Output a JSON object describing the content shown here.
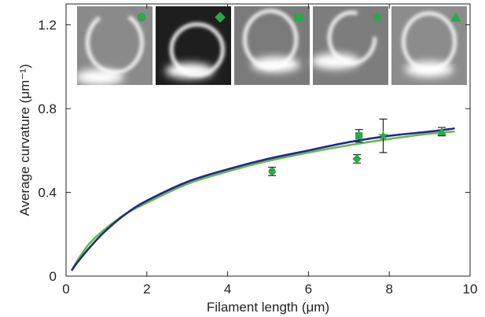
{
  "chart_data": {
    "type": "line",
    "title": "",
    "xlabel": "Filament length (μm)",
    "ylabel": "Average curvature (μm⁻¹)",
    "xlim": [
      0,
      10
    ],
    "ylim": [
      0,
      1.3
    ],
    "xticks": [
      0,
      2,
      4,
      6,
      8,
      10
    ],
    "xtick_labels": [
      "0",
      "2",
      "4",
      "6",
      "8",
      "10"
    ],
    "yticks": [
      0,
      0.4,
      0.8,
      1.2
    ],
    "ytick_labels": [
      "0",
      "0.4",
      "0.8",
      "1.2"
    ],
    "grid": false,
    "series": [
      {
        "kind": "line",
        "color": "#1f2a8c",
        "x": [
          0.15,
          0.3,
          0.6,
          1.0,
          1.5,
          2.0,
          3.0,
          4.0,
          5.0,
          6.0,
          7.0,
          8.0,
          9.0,
          9.6
        ],
        "y": [
          0.03,
          0.07,
          0.14,
          0.22,
          0.3,
          0.36,
          0.45,
          0.51,
          0.56,
          0.6,
          0.64,
          0.67,
          0.69,
          0.705
        ]
      },
      {
        "kind": "line",
        "color": "#6ab84a",
        "x": [
          0.15,
          0.3,
          0.6,
          1.0,
          1.5,
          2.0,
          3.0,
          4.0,
          5.0,
          6.0,
          7.0,
          8.0,
          9.0,
          9.6
        ],
        "y": [
          0.03,
          0.08,
          0.16,
          0.23,
          0.3,
          0.35,
          0.44,
          0.5,
          0.55,
          0.59,
          0.625,
          0.655,
          0.68,
          0.69
        ]
      }
    ],
    "points": [
      {
        "x": 5.1,
        "y": 0.5,
        "err": 0.02,
        "marker": "circle",
        "color": "#2aa84a"
      },
      {
        "x": 7.2,
        "y": 0.56,
        "err": 0.02,
        "marker": "diamond",
        "color": "#2aa84a"
      },
      {
        "x": 7.25,
        "y": 0.67,
        "err": 0.03,
        "marker": "square",
        "color": "#2aa84a"
      },
      {
        "x": 7.85,
        "y": 0.67,
        "err": 0.08,
        "marker": "star",
        "color": "#2aa84a"
      },
      {
        "x": 9.3,
        "y": 0.69,
        "err": 0.02,
        "marker": "triangle",
        "color": "#2aa84a"
      }
    ],
    "insets": [
      {
        "marker": "circle"
      },
      {
        "marker": "diamond"
      },
      {
        "marker": "square"
      },
      {
        "marker": "star"
      },
      {
        "marker": "triangle"
      }
    ],
    "marker_color": "#2aa84a"
  }
}
